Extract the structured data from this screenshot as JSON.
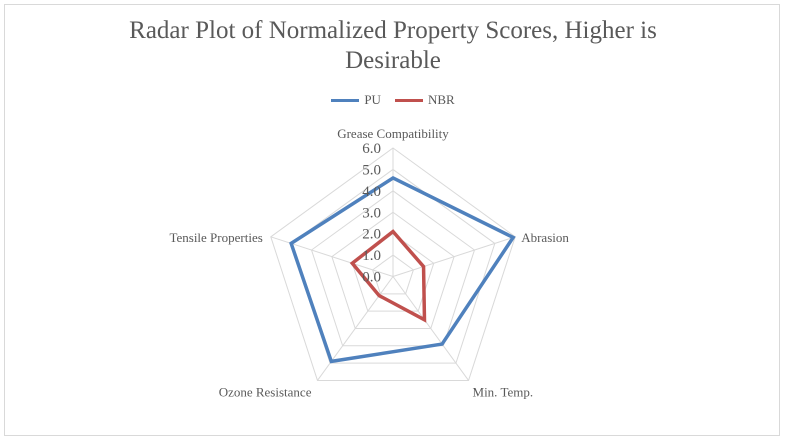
{
  "chart_data": {
    "type": "radar",
    "title": "Radar Plot of Normalized Property Scores, Higher is Desirable",
    "title_lines": [
      "Radar Plot of Normalized Property Scores, Higher is",
      "Desirable"
    ],
    "categories": [
      "Grease Compatibility",
      "Abrasion",
      "Min. Temp.",
      "Ozone Resistance",
      "Tensile Properties"
    ],
    "rlim": [
      0,
      6
    ],
    "ticks": [
      "0.0",
      "1.0",
      "2.0",
      "3.0",
      "4.0",
      "5.0",
      "6.0"
    ],
    "legend_position": "top",
    "series": [
      {
        "name": "PU",
        "color": "#4f81bd",
        "values": [
          4.6,
          5.9,
          3.9,
          4.9,
          5.0
        ]
      },
      {
        "name": "NBR",
        "color": "#c0504d",
        "values": [
          2.1,
          1.5,
          2.5,
          1.1,
          2.0
        ]
      }
    ]
  }
}
